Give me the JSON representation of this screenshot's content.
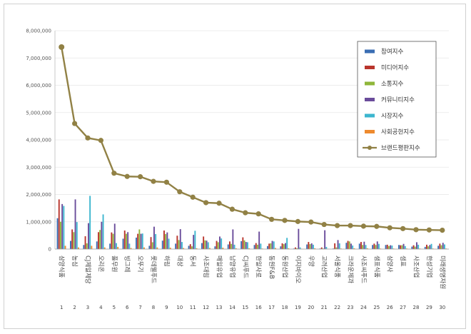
{
  "chart_data": {
    "type": "bar",
    "title": "",
    "xlabel": "",
    "ylabel": "",
    "ylim": [
      0,
      8000000
    ],
    "yticks": [
      "0",
      "1,000,000",
      "2,000,000",
      "3,000,000",
      "4,000,000",
      "5,000,000",
      "6,000,000",
      "7,000,000",
      "8,000,000"
    ],
    "grid": true,
    "legend_position": "top-right",
    "categories": [
      "삼양식품",
      "농심",
      "CJ제일제당",
      "오리온",
      "풀무원",
      "빙그레",
      "오뚜기",
      "롯데웰푸드",
      "하림",
      "대상",
      "동서",
      "사조대림",
      "매일유업",
      "남양유업",
      "CJ씨푸드",
      "한일사료",
      "동원F&B",
      "동원산업",
      "이지바이오",
      "우양",
      "고려산업",
      "서울식품",
      "크라운제과",
      "사조씨푸드",
      "샘표식품",
      "삼양사",
      "샘표",
      "사조산업",
      "한성기업",
      "미래생명자원"
    ],
    "ranks": [
      "1",
      "2",
      "3",
      "4",
      "5",
      "6",
      "7",
      "8",
      "9",
      "10",
      "11",
      "12",
      "13",
      "14",
      "15",
      "16",
      "17",
      "18",
      "19",
      "20",
      "21",
      "22",
      "23",
      "24",
      "25",
      "26",
      "27",
      "28",
      "29",
      "30"
    ],
    "series": [
      {
        "name": "참여지수",
        "color": "#3a6db3",
        "kind": "bar",
        "values": [
          1130000,
          300000,
          150000,
          280000,
          200000,
          380000,
          420000,
          120000,
          310000,
          200000,
          120000,
          220000,
          100000,
          170000,
          290000,
          150000,
          110000,
          100000,
          20000,
          170000,
          20000,
          20000,
          230000,
          200000,
          150000,
          150000,
          150000,
          90000,
          80000,
          120000
        ]
      },
      {
        "name": "미디어지수",
        "color": "#b9352c",
        "kind": "bar",
        "values": [
          1820000,
          720000,
          470000,
          620000,
          610000,
          680000,
          560000,
          440000,
          680000,
          490000,
          180000,
          460000,
          300000,
          280000,
          430000,
          220000,
          200000,
          210000,
          60000,
          260000,
          60000,
          210000,
          300000,
          260000,
          200000,
          160000,
          140000,
          140000,
          160000,
          200000
        ]
      },
      {
        "name": "소통지수",
        "color": "#8fb63a",
        "kind": "bar",
        "values": [
          1000000,
          620000,
          210000,
          700000,
          560000,
          560000,
          720000,
          250000,
          550000,
          330000,
          100000,
          320000,
          250000,
          190000,
          320000,
          160000,
          210000,
          180000,
          30000,
          180000,
          20000,
          60000,
          280000,
          150000,
          150000,
          110000,
          140000,
          90000,
          100000,
          140000
        ]
      },
      {
        "name": "커뮤니티지수",
        "color": "#6a4c9b",
        "kind": "bar",
        "values": [
          1650000,
          1820000,
          950000,
          1000000,
          930000,
          620000,
          560000,
          820000,
          610000,
          730000,
          520000,
          310000,
          460000,
          720000,
          260000,
          640000,
          300000,
          220000,
          740000,
          210000,
          690000,
          330000,
          200000,
          270000,
          280000,
          140000,
          190000,
          250000,
          150000,
          230000
        ]
      },
      {
        "name": "시장지수",
        "color": "#3cb6cf",
        "kind": "bar",
        "values": [
          1580000,
          990000,
          1950000,
          1270000,
          220000,
          200000,
          570000,
          550000,
          380000,
          260000,
          670000,
          250000,
          390000,
          160000,
          250000,
          200000,
          280000,
          410000,
          60000,
          160000,
          80000,
          210000,
          130000,
          150000,
          190000,
          130000,
          110000,
          160000,
          190000,
          170000
        ]
      },
      {
        "name": "사회공헌지수",
        "color": "#ee8a2e",
        "kind": "bar",
        "values": [
          120000,
          60000,
          120000,
          60000,
          80000,
          40000,
          60000,
          60000,
          50000,
          40000,
          30000,
          40000,
          50000,
          30000,
          30000,
          20000,
          40000,
          30000,
          10000,
          30000,
          10000,
          20000,
          30000,
          30000,
          20000,
          20000,
          20000,
          20000,
          20000,
          20000
        ]
      },
      {
        "name": "브랜드평판지수",
        "color": "#918145",
        "kind": "line",
        "values": [
          7400000,
          4600000,
          4070000,
          3980000,
          2780000,
          2660000,
          2650000,
          2480000,
          2450000,
          2100000,
          1900000,
          1700000,
          1680000,
          1460000,
          1330000,
          1290000,
          1090000,
          1050000,
          1010000,
          990000,
          900000,
          860000,
          860000,
          840000,
          830000,
          780000,
          750000,
          710000,
          700000,
          690000
        ]
      }
    ]
  }
}
